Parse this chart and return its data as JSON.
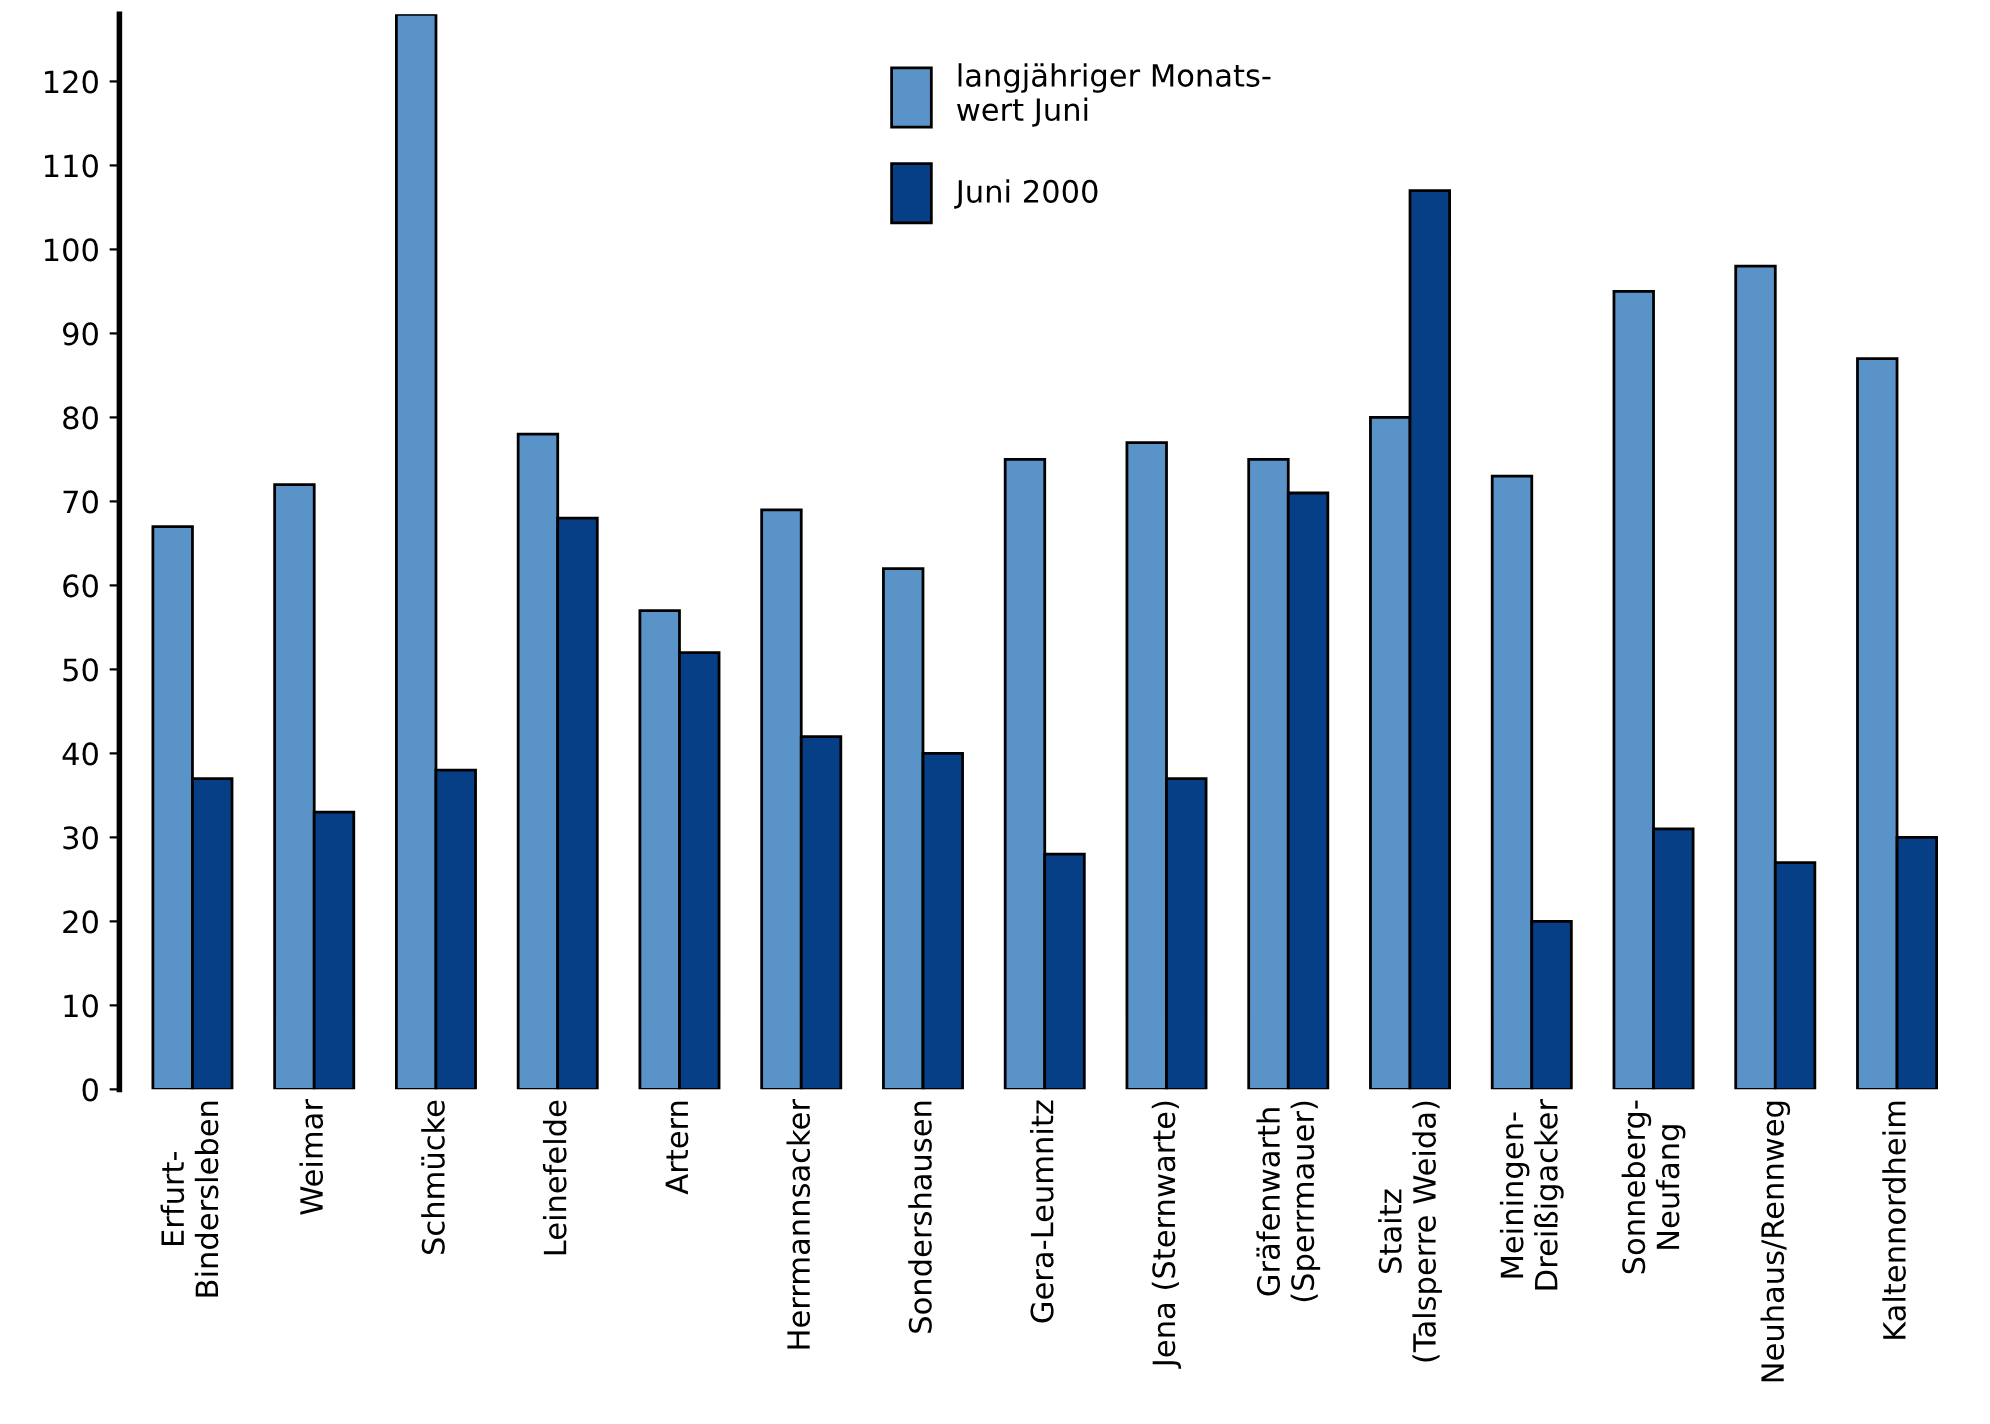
{
  "chart_data": {
    "type": "bar",
    "categories": [
      "Erfurt-\nBindersleben",
      "Weimar",
      "Schmücke",
      "Leinefelde",
      "Artern",
      "Herrmannsacker",
      "Sondershausen",
      "Gera-Leumnitz",
      "Jena (Sternwarte)",
      "Gräfenwarth\n(Sperrmauer)",
      "Staitz\n(Talsperre Weida)",
      "Meiningen-\nDreißigacker",
      "Sonneberg-\nNeufang",
      "Neuhaus/Rennweg",
      "Kaltennordheim"
    ],
    "series": [
      {
        "name": "langjähriger Monats-\nwert Juni",
        "color": "#5a93c8",
        "values": [
          67,
          72,
          128,
          78,
          57,
          69,
          62,
          75,
          77,
          75,
          80,
          73,
          95,
          98,
          87
        ]
      },
      {
        "name": "Juni 2000",
        "color": "#063f86",
        "values": [
          37,
          33,
          38,
          68,
          52,
          42,
          40,
          28,
          37,
          71,
          107,
          20,
          31,
          27,
          30
        ]
      }
    ],
    "ylim": [
      0,
      128
    ],
    "yticks": [
      0,
      10,
      20,
      30,
      40,
      50,
      60,
      70,
      80,
      90,
      100,
      110,
      120
    ],
    "grid": false,
    "legend": "top"
  }
}
